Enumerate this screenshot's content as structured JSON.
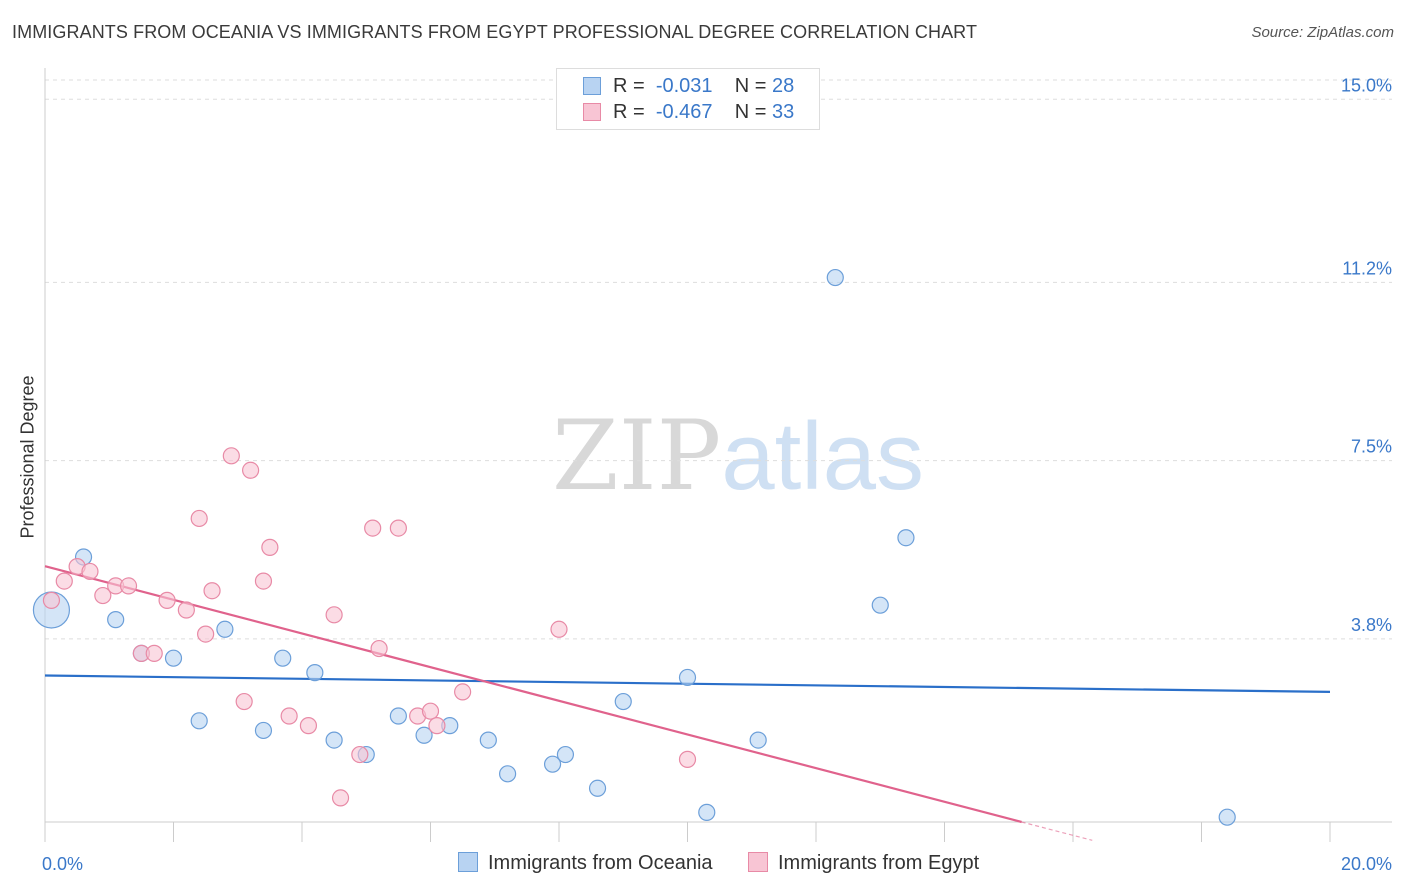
{
  "title": "IMMIGRANTS FROM OCEANIA VS IMMIGRANTS FROM EGYPT PROFESSIONAL DEGREE CORRELATION CHART",
  "source": "Source: ZipAtlas.com",
  "watermark": {
    "zip": "ZIP",
    "atlas": "atlas"
  },
  "legend": {
    "rows": [
      {
        "r_label": "R =",
        "r_value": "-0.031",
        "n_label": "N =",
        "n_value": "28"
      },
      {
        "r_label": "R =",
        "r_value": "-0.467",
        "n_label": "N =",
        "n_value": "33"
      }
    ]
  },
  "colors": {
    "oceania_fill": "#b8d3f2",
    "oceania_stroke": "#6c9fd9",
    "oceania_line": "#2a6fc9",
    "egypt_fill": "#f8c5d4",
    "egypt_stroke": "#e88aa6",
    "egypt_line": "#e0628c",
    "tick_label": "#3a78c9",
    "grid": "#dddddd"
  },
  "chart_data": {
    "type": "scatter",
    "title": "IMMIGRANTS FROM OCEANIA VS IMMIGRANTS FROM EGYPT PROFESSIONAL DEGREE CORRELATION CHART",
    "xlabel": "",
    "ylabel": "Professional Degree",
    "xlim": [
      0,
      20
    ],
    "ylim": [
      0,
      15.4
    ],
    "x_tick_labels": [
      {
        "value": 0,
        "label": "0.0%"
      },
      {
        "value": 20,
        "label": "20.0%"
      }
    ],
    "y_tick_labels": [
      {
        "value": 3.8,
        "label": "3.8%"
      },
      {
        "value": 7.5,
        "label": "7.5%"
      },
      {
        "value": 11.2,
        "label": "11.2%"
      },
      {
        "value": 15.0,
        "label": "15.0%"
      }
    ],
    "series": [
      {
        "name": "Immigrants from Oceania",
        "points": [
          {
            "x": 0.1,
            "y": 4.4,
            "size": "large"
          },
          {
            "x": 0.6,
            "y": 5.5
          },
          {
            "x": 1.1,
            "y": 4.2
          },
          {
            "x": 1.5,
            "y": 3.5
          },
          {
            "x": 2.0,
            "y": 3.4
          },
          {
            "x": 2.4,
            "y": 2.1
          },
          {
            "x": 2.8,
            "y": 4.0
          },
          {
            "x": 3.4,
            "y": 1.9
          },
          {
            "x": 3.7,
            "y": 3.4
          },
          {
            "x": 4.2,
            "y": 3.1
          },
          {
            "x": 4.5,
            "y": 1.7
          },
          {
            "x": 5.0,
            "y": 1.4
          },
          {
            "x": 5.5,
            "y": 2.2
          },
          {
            "x": 5.9,
            "y": 1.8
          },
          {
            "x": 6.3,
            "y": 2.0
          },
          {
            "x": 6.9,
            "y": 1.7
          },
          {
            "x": 7.2,
            "y": 1.0
          },
          {
            "x": 7.9,
            "y": 1.2
          },
          {
            "x": 8.1,
            "y": 1.4
          },
          {
            "x": 8.6,
            "y": 0.7
          },
          {
            "x": 9.0,
            "y": 2.5
          },
          {
            "x": 10.0,
            "y": 3.0
          },
          {
            "x": 10.3,
            "y": 0.2
          },
          {
            "x": 11.1,
            "y": 1.7
          },
          {
            "x": 12.3,
            "y": 11.3
          },
          {
            "x": 13.0,
            "y": 4.5
          },
          {
            "x": 13.4,
            "y": 5.9
          },
          {
            "x": 18.4,
            "y": 0.1
          }
        ],
        "trend": {
          "x1": 0,
          "y1": 3.04,
          "x2": 20,
          "y2": 2.7
        }
      },
      {
        "name": "Immigrants from Egypt",
        "points": [
          {
            "x": 0.1,
            "y": 4.6
          },
          {
            "x": 0.3,
            "y": 5.0
          },
          {
            "x": 0.5,
            "y": 5.3
          },
          {
            "x": 0.7,
            "y": 5.2
          },
          {
            "x": 0.9,
            "y": 4.7
          },
          {
            "x": 1.1,
            "y": 4.9
          },
          {
            "x": 1.3,
            "y": 4.9
          },
          {
            "x": 1.5,
            "y": 3.5
          },
          {
            "x": 1.7,
            "y": 3.5
          },
          {
            "x": 1.9,
            "y": 4.6
          },
          {
            "x": 2.2,
            "y": 4.4
          },
          {
            "x": 2.4,
            "y": 6.3
          },
          {
            "x": 2.5,
            "y": 3.9
          },
          {
            "x": 2.6,
            "y": 4.8
          },
          {
            "x": 2.9,
            "y": 7.6
          },
          {
            "x": 3.1,
            "y": 2.5
          },
          {
            "x": 3.2,
            "y": 7.3
          },
          {
            "x": 3.4,
            "y": 5.0
          },
          {
            "x": 3.5,
            "y": 5.7
          },
          {
            "x": 3.8,
            "y": 2.2
          },
          {
            "x": 4.1,
            "y": 2.0
          },
          {
            "x": 4.5,
            "y": 4.3
          },
          {
            "x": 4.6,
            "y": 0.5
          },
          {
            "x": 4.9,
            "y": 1.4
          },
          {
            "x": 5.1,
            "y": 6.1
          },
          {
            "x": 5.2,
            "y": 3.6
          },
          {
            "x": 5.5,
            "y": 6.1
          },
          {
            "x": 5.8,
            "y": 2.2
          },
          {
            "x": 6.0,
            "y": 2.3
          },
          {
            "x": 6.1,
            "y": 2.0
          },
          {
            "x": 6.5,
            "y": 2.7
          },
          {
            "x": 8.0,
            "y": 4.0
          },
          {
            "x": 10.0,
            "y": 1.3
          }
        ],
        "trend": {
          "x1": 0,
          "y1": 5.31,
          "x2": 15.2,
          "y2": 0.0,
          "dash_to_x": 16.3,
          "dash_to_y": -0.38
        }
      }
    ],
    "legend": [
      "Immigrants from Oceania",
      "Immigrants from Egypt"
    ],
    "grid": true
  }
}
